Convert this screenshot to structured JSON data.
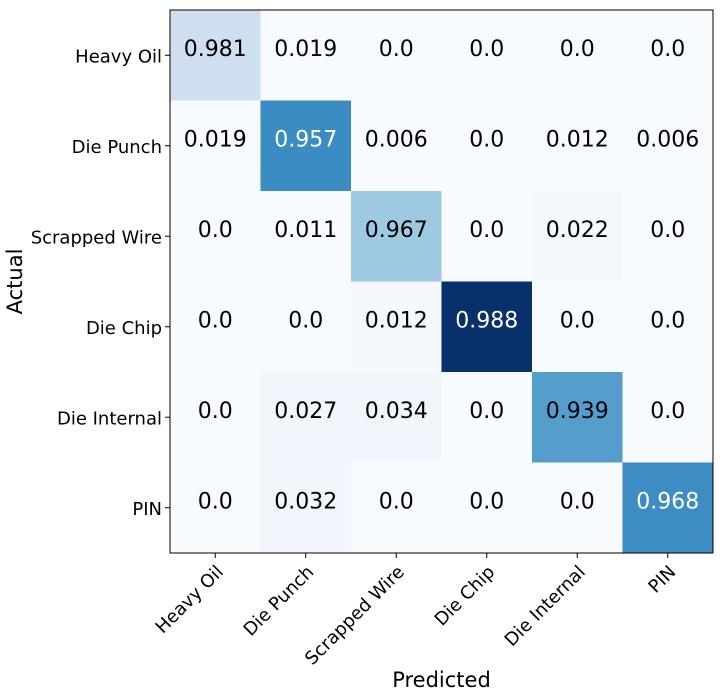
{
  "chart_data": {
    "type": "heatmap",
    "xlabel": "Predicted",
    "ylabel": "Actual",
    "x_categories": [
      "Heavy Oil",
      "Die Punch",
      "Scrapped Wire",
      "Die Chip",
      "Die Internal",
      "PIN"
    ],
    "y_categories": [
      "Heavy Oil",
      "Die Punch",
      "Scrapped Wire",
      "Die Chip",
      "Die Internal",
      "PIN"
    ],
    "cell_labels": [
      [
        "0.981",
        "0.019",
        "0.0",
        "0.0",
        "0.0",
        "0.0"
      ],
      [
        "0.019",
        "0.957",
        "0.006",
        "0.0",
        "0.012",
        "0.006"
      ],
      [
        "0.0",
        "0.011",
        "0.967",
        "0.0",
        "0.022",
        "0.0"
      ],
      [
        "0.0",
        "0.0",
        "0.012",
        "0.988",
        "0.0",
        "0.0"
      ],
      [
        "0.0",
        "0.027",
        "0.034",
        "0.0",
        "0.939",
        "0.0"
      ],
      [
        "0.0",
        "0.032",
        "0.0",
        "0.0",
        "0.0",
        "0.968"
      ]
    ],
    "cell_colors": [
      [
        "#cfdff0",
        "#f7fbff",
        "#f7fbff",
        "#f7fbff",
        "#f7fbff",
        "#f7fbff"
      ],
      [
        "#f7fbff",
        "#3c8cc4",
        "#f7fbff",
        "#f7fbff",
        "#f7fbff",
        "#f7fbff"
      ],
      [
        "#f7fbff",
        "#f7fbff",
        "#9dcae1",
        "#f7fbff",
        "#f3f8fd",
        "#f7fbff"
      ],
      [
        "#f7fbff",
        "#f7fbff",
        "#f5f9fe",
        "#08306b",
        "#f7fbff",
        "#f7fbff"
      ],
      [
        "#f7fbff",
        "#f1f6fc",
        "#f1f6fc",
        "#f7fbff",
        "#539ecd",
        "#f7fbff"
      ],
      [
        "#f7fbff",
        "#f1f6fc",
        "#f7fbff",
        "#f7fbff",
        "#f7fbff",
        "#3d8dc4"
      ]
    ],
    "colormap": "Blues",
    "grid": false,
    "legend": "none"
  }
}
